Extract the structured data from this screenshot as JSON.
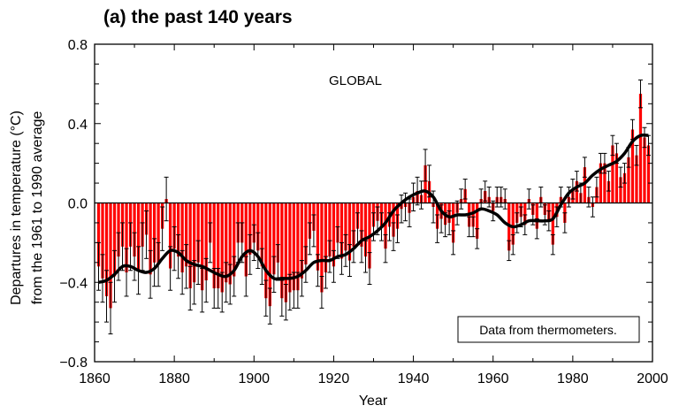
{
  "chart_data": {
    "type": "bar",
    "title": "(a) the past 140 years",
    "xlabel": "Year",
    "ylabel": "Departures in temperature (°C)",
    "ylabel_line2": "from the 1961 to 1990 average",
    "annotation_region": "GLOBAL",
    "annotation_source": "Data from thermometers.",
    "xlim": [
      1860,
      2000
    ],
    "ylim": [
      -0.8,
      0.8
    ],
    "x_ticks": [
      1860,
      1880,
      1900,
      1920,
      1940,
      1960,
      1980,
      2000
    ],
    "x_tick_labels": [
      "1860",
      "1880",
      "1900",
      "1920",
      "1940",
      "1960",
      "1980",
      "2000"
    ],
    "y_ticks": [
      0.8,
      0.4,
      0.0,
      -0.4,
      -0.8
    ],
    "y_tick_labels": [
      "0.8",
      "0.4",
      "0.0",
      "−0.4",
      "−0.8"
    ],
    "grid": false,
    "bar_color": "#ff0000",
    "smooth_color": "#000000",
    "years": [
      1861,
      1862,
      1863,
      1864,
      1865,
      1866,
      1867,
      1868,
      1869,
      1870,
      1871,
      1872,
      1873,
      1874,
      1875,
      1876,
      1877,
      1878,
      1879,
      1880,
      1881,
      1882,
      1883,
      1884,
      1885,
      1886,
      1887,
      1888,
      1889,
      1890,
      1891,
      1892,
      1893,
      1894,
      1895,
      1896,
      1897,
      1898,
      1899,
      1900,
      1901,
      1902,
      1903,
      1904,
      1905,
      1906,
      1907,
      1908,
      1909,
      1910,
      1911,
      1912,
      1913,
      1914,
      1915,
      1916,
      1917,
      1918,
      1919,
      1920,
      1921,
      1922,
      1923,
      1924,
      1925,
      1926,
      1927,
      1928,
      1929,
      1930,
      1931,
      1932,
      1933,
      1934,
      1935,
      1936,
      1937,
      1938,
      1939,
      1940,
      1941,
      1942,
      1943,
      1944,
      1945,
      1946,
      1947,
      1948,
      1949,
      1950,
      1951,
      1952,
      1953,
      1954,
      1955,
      1956,
      1957,
      1958,
      1959,
      1960,
      1961,
      1962,
      1963,
      1964,
      1965,
      1966,
      1967,
      1968,
      1969,
      1970,
      1971,
      1972,
      1973,
      1974,
      1975,
      1976,
      1977,
      1978,
      1979,
      1980,
      1981,
      1982,
      1983,
      1984,
      1985,
      1986,
      1987,
      1988,
      1989,
      1990,
      1991,
      1992,
      1993,
      1994,
      1995,
      1996,
      1997,
      1998,
      1999
    ],
    "values": [
      -0.32,
      -0.38,
      -0.47,
      -0.53,
      -0.37,
      -0.27,
      -0.22,
      -0.35,
      -0.22,
      -0.27,
      -0.34,
      -0.22,
      -0.16,
      -0.36,
      -0.3,
      -0.31,
      -0.13,
      0.02,
      -0.33,
      -0.23,
      -0.27,
      -0.35,
      -0.32,
      -0.43,
      -0.4,
      -0.3,
      -0.44,
      -0.39,
      -0.2,
      -0.43,
      -0.43,
      -0.45,
      -0.4,
      -0.41,
      -0.37,
      -0.2,
      -0.2,
      -0.37,
      -0.26,
      -0.2,
      -0.24,
      -0.32,
      -0.48,
      -0.52,
      -0.36,
      -0.3,
      -0.48,
      -0.5,
      -0.45,
      -0.44,
      -0.44,
      -0.38,
      -0.31,
      -0.18,
      -0.14,
      -0.34,
      -0.45,
      -0.35,
      -0.27,
      -0.32,
      -0.2,
      -0.28,
      -0.24,
      -0.29,
      -0.22,
      -0.13,
      -0.22,
      -0.27,
      -0.33,
      -0.12,
      -0.09,
      -0.12,
      -0.23,
      -0.12,
      -0.17,
      -0.13,
      -0.03,
      -0.02,
      -0.05,
      0.03,
      0.06,
      0.04,
      0.19,
      0.11,
      -0.02,
      -0.13,
      -0.08,
      -0.11,
      -0.1,
      -0.2,
      -0.05,
      0.02,
      0.07,
      -0.12,
      -0.12,
      -0.18,
      0.02,
      0.06,
      0.03,
      -0.04,
      0.03,
      0.03,
      0.02,
      -0.24,
      -0.21,
      -0.1,
      -0.07,
      -0.11,
      0.02,
      -0.06,
      -0.13,
      0.03,
      -0.06,
      -0.09,
      -0.21,
      -0.07,
      0.03,
      -0.1,
      0.03,
      0.07,
      0.11,
      0.05,
      0.18,
      0.03,
      -0.02,
      0.08,
      0.2,
      0.2,
      0.11,
      0.29,
      0.25,
      0.13,
      0.15,
      0.23,
      0.37,
      0.24,
      0.55,
      0.33,
      0.29
    ],
    "error_half_width": [
      0.12,
      0.12,
      0.13,
      0.13,
      0.13,
      0.12,
      0.12,
      0.12,
      0.12,
      0.12,
      0.12,
      0.12,
      0.12,
      0.12,
      0.12,
      0.11,
      0.11,
      0.11,
      0.11,
      0.11,
      0.11,
      0.11,
      0.11,
      0.11,
      0.11,
      0.11,
      0.11,
      0.11,
      0.1,
      0.1,
      0.1,
      0.1,
      0.1,
      0.1,
      0.1,
      0.1,
      0.1,
      0.1,
      0.1,
      0.09,
      0.09,
      0.09,
      0.09,
      0.09,
      0.09,
      0.09,
      0.09,
      0.09,
      0.09,
      0.09,
      0.09,
      0.09,
      0.09,
      0.08,
      0.08,
      0.08,
      0.08,
      0.08,
      0.08,
      0.08,
      0.08,
      0.08,
      0.08,
      0.08,
      0.08,
      0.08,
      0.08,
      0.08,
      0.08,
      0.07,
      0.07,
      0.07,
      0.07,
      0.07,
      0.07,
      0.07,
      0.07,
      0.07,
      0.07,
      0.07,
      0.07,
      0.07,
      0.08,
      0.08,
      0.08,
      0.07,
      0.07,
      0.06,
      0.06,
      0.06,
      0.06,
      0.05,
      0.05,
      0.05,
      0.05,
      0.05,
      0.05,
      0.05,
      0.05,
      0.05,
      0.05,
      0.05,
      0.05,
      0.05,
      0.05,
      0.05,
      0.05,
      0.05,
      0.05,
      0.05,
      0.05,
      0.05,
      0.05,
      0.05,
      0.05,
      0.05,
      0.05,
      0.05,
      0.05,
      0.05,
      0.05,
      0.05,
      0.05,
      0.05,
      0.05,
      0.05,
      0.05,
      0.05,
      0.05,
      0.05,
      0.05,
      0.05,
      0.05,
      0.05,
      0.05,
      0.05,
      0.07,
      0.05,
      0.05
    ],
    "smooth_x": [
      1861,
      1863,
      1865,
      1867,
      1869,
      1871,
      1873,
      1875,
      1877,
      1879,
      1881,
      1883,
      1885,
      1887,
      1889,
      1891,
      1893,
      1895,
      1897,
      1899,
      1901,
      1903,
      1905,
      1907,
      1909,
      1911,
      1913,
      1915,
      1917,
      1919,
      1921,
      1923,
      1925,
      1927,
      1929,
      1931,
      1933,
      1935,
      1937,
      1939,
      1941,
      1943,
      1945,
      1947,
      1949,
      1951,
      1953,
      1955,
      1957,
      1959,
      1961,
      1963,
      1965,
      1967,
      1969,
      1971,
      1973,
      1975,
      1977,
      1979,
      1981,
      1983,
      1985,
      1987,
      1989,
      1991,
      1993,
      1995,
      1997,
      1999
    ],
    "smooth_y": [
      -0.4,
      -0.39,
      -0.36,
      -0.32,
      -0.32,
      -0.34,
      -0.35,
      -0.33,
      -0.28,
      -0.24,
      -0.25,
      -0.29,
      -0.31,
      -0.32,
      -0.34,
      -0.36,
      -0.37,
      -0.34,
      -0.27,
      -0.24,
      -0.27,
      -0.34,
      -0.38,
      -0.38,
      -0.38,
      -0.37,
      -0.34,
      -0.3,
      -0.29,
      -0.29,
      -0.27,
      -0.26,
      -0.23,
      -0.19,
      -0.17,
      -0.14,
      -0.1,
      -0.04,
      0.0,
      0.03,
      0.05,
      0.06,
      0.03,
      -0.04,
      -0.07,
      -0.06,
      -0.06,
      -0.05,
      -0.03,
      -0.04,
      -0.06,
      -0.1,
      -0.12,
      -0.11,
      -0.09,
      -0.09,
      -0.09,
      -0.08,
      -0.01,
      0.05,
      0.08,
      0.1,
      0.14,
      0.17,
      0.19,
      0.21,
      0.25,
      0.31,
      0.34,
      0.34
    ]
  }
}
